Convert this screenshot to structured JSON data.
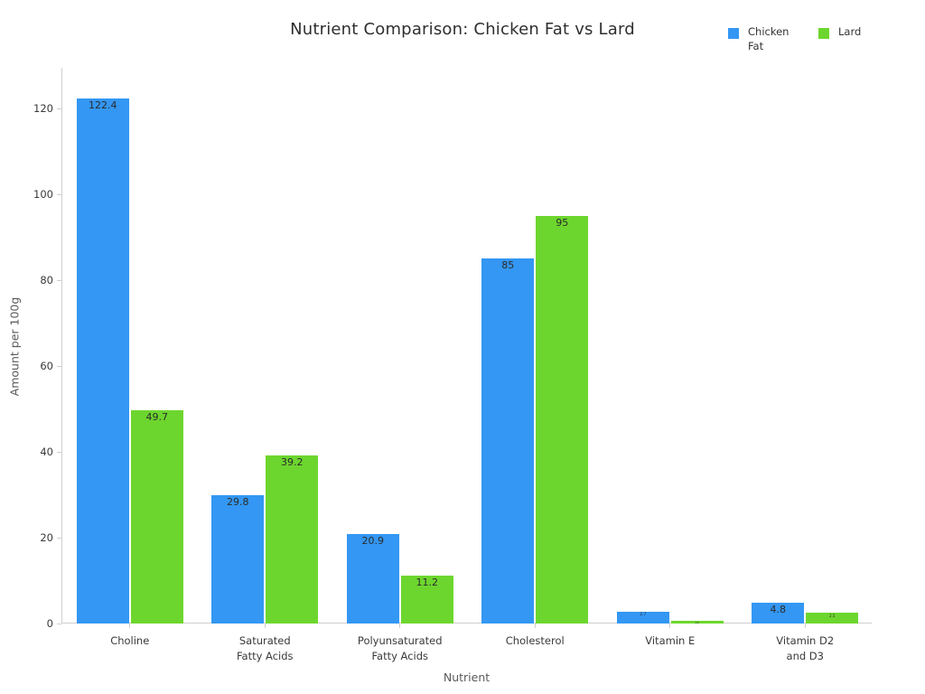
{
  "figure": {
    "background": "#ffffff",
    "axis_line_color": "#cfcfcf"
  },
  "chart_data": {
    "type": "bar",
    "title": "Nutrient Comparison: Chicken Fat vs Lard",
    "xlabel": "Nutrient",
    "ylabel": "Amount per 100g",
    "categories": [
      "Choline",
      "Saturated Fatty Acids",
      "Polyunsaturated Fatty Acids",
      "Cholesterol",
      "Vitamin E",
      "Vitamin D2 and D3"
    ],
    "category_display": [
      "Choline",
      "Saturated\nFatty Acids",
      "Polyunsaturated\nFatty Acids",
      "Cholesterol",
      "Vitamin E",
      "Vitamin D2\nand D3"
    ],
    "series": [
      {
        "name": "Chicken Fat",
        "color": "#3397f3",
        "values": [
          122.4,
          29.8,
          20.9,
          85,
          2.7,
          4.8
        ],
        "labels": [
          "122.4",
          "29.8",
          "20.9",
          "85",
          "2.7",
          "4.8"
        ]
      },
      {
        "name": "Lard",
        "color": "#6dd62e",
        "values": [
          49.7,
          39.2,
          11.2,
          95,
          0.6,
          2.5
        ],
        "labels": [
          "49.7",
          "39.2",
          "11.2",
          "95",
          "0.6",
          "2.5"
        ]
      }
    ],
    "yticks": [
      0,
      20,
      40,
      60,
      80,
      100,
      120
    ],
    "ylim": [
      0,
      129.5
    ],
    "grid": false,
    "legend_position": "top-right",
    "bar_label_position": "inside-top"
  }
}
